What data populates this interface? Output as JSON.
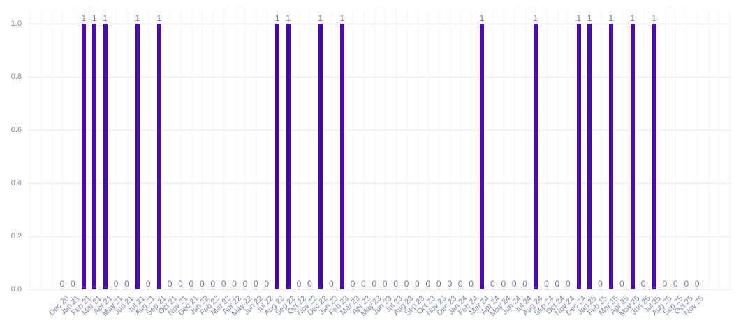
{
  "chart_data": {
    "type": "bar",
    "title": "",
    "xlabel": "",
    "ylabel": "",
    "categories": [
      "Dec 20",
      "Jan 21",
      "Feb 21",
      "Mar 21",
      "Apr 21",
      "May 21",
      "Jun 21",
      "Jul 21",
      "Aug 21",
      "Sep 21",
      "Oct 21",
      "Nov 21",
      "Dec 21",
      "Jan 22",
      "Feb 22",
      "Mar 22",
      "Apr 22",
      "May 22",
      "Jun 22",
      "Jul 22",
      "Aug 22",
      "Sep 22",
      "Oct 22",
      "Nov 22",
      "Dec 22",
      "Jan 23",
      "Feb 23",
      "Mar 23",
      "Apr 23",
      "May 23",
      "Jun 23",
      "Jul 23",
      "Aug 23",
      "Sep 23",
      "Oct 23",
      "Nov 23",
      "Dec 23",
      "Jan 24",
      "Feb 24",
      "Mar 24",
      "Apr 24",
      "May 24",
      "Jun 24",
      "Jul 24",
      "Aug 24",
      "Sep 24",
      "Oct 24",
      "Nov 24",
      "Dec 24",
      "Jan 25",
      "Feb 25",
      "Mar 25",
      "Apr 25",
      "May 25",
      "Jun 25",
      "Jul 25",
      "Aug 25",
      "Sep 25",
      "Oct 25",
      "Nov 25"
    ],
    "values": [
      0,
      0,
      1,
      1,
      1,
      0,
      0,
      1,
      0,
      1,
      0,
      0,
      0,
      0,
      0,
      0,
      0,
      0,
      0,
      0,
      1,
      1,
      0,
      0,
      1,
      0,
      1,
      0,
      0,
      0,
      0,
      0,
      0,
      0,
      0,
      0,
      0,
      0,
      0,
      1,
      0,
      0,
      0,
      0,
      1,
      0,
      0,
      0,
      1,
      1,
      0,
      1,
      0,
      1,
      0,
      1,
      0,
      0,
      0,
      0
    ],
    "value_labels_shown": true,
    "ytick_labels": [
      "0.0",
      "0.2",
      "0.4",
      "0.6",
      "0.8",
      "1.0"
    ],
    "ytick_values": [
      0.0,
      0.2,
      0.4,
      0.6,
      0.8,
      1.0
    ],
    "ylim": [
      0,
      1.05
    ],
    "grid": true,
    "legend_position": "none",
    "colors": {
      "bar": "#4a0caf",
      "tick_label": "#7d86ab",
      "value_label": "#6f7aa3",
      "grid_horizontal": "#e9e9f4",
      "grid_vertical": "#f2f2f9",
      "background": "#ffffff"
    }
  }
}
